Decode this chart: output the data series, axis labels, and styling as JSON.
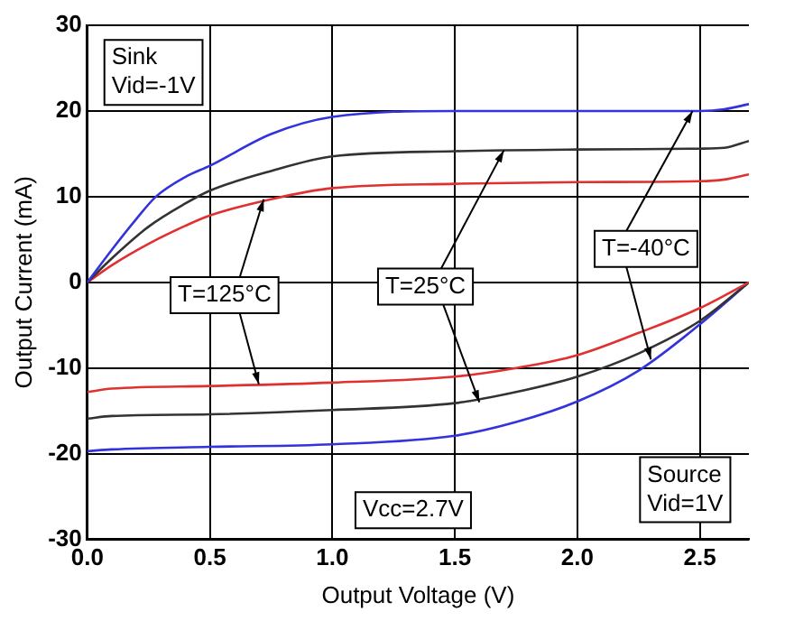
{
  "chart_data": {
    "type": "line",
    "xlabel": "Output Voltage (V)",
    "ylabel": "Output Current (mA)",
    "xlim": [
      0,
      2.7
    ],
    "xticks": [
      {
        "value": 0,
        "label": "0.0"
      },
      {
        "value": 0.5,
        "label": "0.5"
      },
      {
        "value": 1,
        "label": "1.0"
      },
      {
        "value": 1.5,
        "label": "1.5"
      },
      {
        "value": 2,
        "label": "2.0"
      },
      {
        "value": 2.5,
        "label": "2.5"
      }
    ],
    "ylim": [
      -30,
      30
    ],
    "yticks": [
      -30,
      -20,
      -10,
      0,
      10,
      20,
      30
    ],
    "grid": true,
    "legend": false,
    "marker": "none",
    "line_style": "solid",
    "series": [
      {
        "color": "#3333dd",
        "x": [
          0,
          0.1,
          0.2,
          0.28,
          0.4,
          0.5,
          0.75,
          1,
          1.5,
          2,
          2.5,
          2.6,
          2.7
        ],
        "values": [
          0,
          3.8,
          7.4,
          10,
          12.3,
          13.6,
          17.3,
          19.3,
          20,
          20,
          20,
          20.2,
          20.8
        ]
      },
      {
        "color": "#333333",
        "x": [
          0,
          0.1,
          0.25,
          0.4,
          0.5,
          0.75,
          1,
          1.5,
          2,
          2.5,
          2.6,
          2.7
        ],
        "values": [
          0,
          2.8,
          6.5,
          9.2,
          10.7,
          13,
          14.7,
          15.3,
          15.5,
          15.6,
          15.7,
          16.5
        ]
      },
      {
        "color": "#e03030",
        "x": [
          0,
          0.1,
          0.25,
          0.4,
          0.5,
          0.75,
          1,
          1.5,
          2,
          2.5,
          2.6,
          2.7
        ],
        "values": [
          0,
          2,
          4.5,
          6.6,
          7.8,
          9.7,
          11,
          11.5,
          11.7,
          11.8,
          12,
          12.6
        ]
      },
      {
        "color": "#e03030",
        "x": [
          0,
          0.1,
          0.5,
          1,
          1.5,
          1.75,
          2,
          2.25,
          2.5,
          2.7
        ],
        "values": [
          -12.8,
          -12.4,
          -12.1,
          -11.7,
          -11,
          -10,
          -8.5,
          -5.9,
          -3,
          0
        ]
      },
      {
        "color": "#333333",
        "x": [
          0,
          0.1,
          0.5,
          1,
          1.5,
          1.75,
          2,
          2.25,
          2.5,
          2.7
        ],
        "values": [
          -15.9,
          -15.6,
          -15.4,
          -14.9,
          -14.1,
          -12.8,
          -11,
          -8.3,
          -4.5,
          0
        ]
      },
      {
        "color": "#3333dd",
        "x": [
          0,
          0.1,
          0.5,
          1,
          1.5,
          1.75,
          2,
          2.25,
          2.5,
          2.7
        ],
        "values": [
          -19.7,
          -19.5,
          -19.2,
          -18.9,
          -17.9,
          -16.3,
          -13.9,
          -10.3,
          -4.9,
          0
        ]
      }
    ],
    "annotations": [
      "Sink\nVid=-1V",
      {
        "text": "T=125°C",
        "x": 0.72,
        "y": 9.7
      },
      {
        "text": "T=25°C",
        "x": 1.7,
        "y": 15.4
      },
      {
        "text": "T=-40°C",
        "x": 2.47,
        "y": 20
      },
      "Vcc=2.7V",
      "Source\nVid=1V"
    ]
  }
}
